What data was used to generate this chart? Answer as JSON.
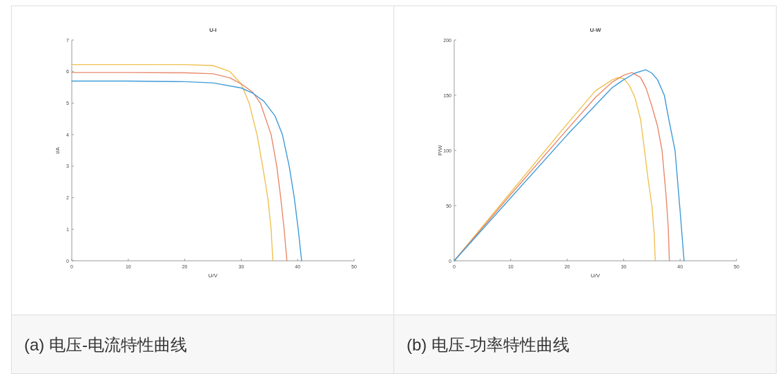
{
  "chart_data": [
    {
      "type": "line",
      "title": "U-I",
      "xlabel": "U/V",
      "ylabel": "I/A",
      "xlim": [
        0,
        50
      ],
      "ylim": [
        0,
        7
      ],
      "xticks": [
        0,
        10,
        20,
        30,
        40,
        50
      ],
      "yticks": [
        0,
        1,
        2,
        3,
        4,
        5,
        6,
        7
      ],
      "grid": false,
      "annotations": [
        "(a) 电压-电流特性曲线"
      ],
      "series": [
        {
          "color": "#f0c050",
          "x": [
            0,
            10,
            20,
            23,
            25,
            28,
            30,
            31.4,
            32.8,
            33.8,
            34.7,
            35.3,
            35.6
          ],
          "values": [
            6.22,
            6.22,
            6.22,
            6.2,
            6.19,
            6.0,
            5.61,
            5.0,
            4.0,
            3.0,
            2.0,
            1.0,
            0
          ]
        },
        {
          "color": "#e8886a",
          "x": [
            0,
            10,
            20,
            25,
            28,
            30,
            32,
            33.4,
            35.3,
            36.3,
            37.0,
            37.6,
            38.1
          ],
          "values": [
            5.97,
            5.97,
            5.96,
            5.93,
            5.8,
            5.61,
            5.35,
            5.0,
            4.0,
            3.0,
            2.0,
            1.0,
            0
          ]
        },
        {
          "color": "#3d9ad8",
          "x": [
            0,
            10,
            20,
            25,
            30,
            32,
            34,
            36,
            37.3,
            38.5,
            39.4,
            40.1,
            40.7
          ],
          "values": [
            5.7,
            5.7,
            5.68,
            5.64,
            5.48,
            5.32,
            5.06,
            4.59,
            4.0,
            3.0,
            2.0,
            1.0,
            0
          ]
        }
      ]
    },
    {
      "type": "line",
      "title": "U-W",
      "xlabel": "U/V",
      "ylabel": "P/W",
      "xlim": [
        0,
        50
      ],
      "ylim": [
        0,
        200
      ],
      "xticks": [
        0,
        10,
        20,
        30,
        40,
        50
      ],
      "yticks": [
        0,
        50,
        100,
        150,
        200
      ],
      "grid": false,
      "annotations": [
        "(b) 电压-功率特性曲线"
      ],
      "series": [
        {
          "color": "#f0c050",
          "x": [
            0,
            10,
            20,
            25,
            28,
            29,
            30,
            31,
            32,
            33,
            33.7,
            34.3,
            35,
            35.4,
            35.6
          ],
          "values": [
            0,
            62,
            124,
            154,
            164,
            166,
            165,
            159,
            148,
            128,
            100,
            75,
            50,
            25,
            0
          ]
        },
        {
          "color": "#e8886a",
          "x": [
            0,
            10,
            20,
            25,
            28,
            30,
            31.5,
            33,
            34,
            35,
            36,
            36.8,
            37.5,
            37.9,
            38.1
          ],
          "values": [
            0,
            60,
            119,
            148,
            162,
            168,
            170.5,
            166,
            156,
            140,
            122,
            100,
            60,
            30,
            0
          ]
        },
        {
          "color": "#3d9ad8",
          "x": [
            0,
            10,
            20,
            25,
            28,
            30,
            32,
            33.9,
            35,
            36,
            37.2,
            38,
            39.1,
            40,
            40.7
          ],
          "values": [
            0,
            57,
            114,
            141,
            157,
            164,
            170,
            173,
            170,
            164,
            150,
            128,
            100,
            45,
            0
          ]
        }
      ]
    }
  ]
}
